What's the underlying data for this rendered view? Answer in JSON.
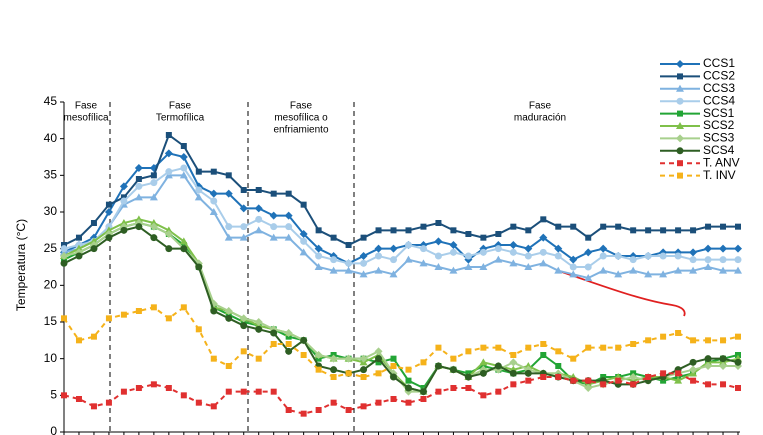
{
  "chart_data": {
    "type": "line",
    "y_label": "Temperatura (°C)",
    "ylim": [
      0,
      45
    ],
    "yticks": [
      0,
      5,
      10,
      15,
      20,
      25,
      30,
      35,
      40,
      45
    ],
    "legend": "top-right",
    "phases": [
      [
        "Fase",
        "mesofílica"
      ],
      [
        "Fase",
        "Termofílica"
      ],
      [
        "Fase",
        "mesofílica o",
        "enfriamiento"
      ],
      [
        "Fase",
        "maduración"
      ]
    ],
    "categories": [
      null,
      null,
      null,
      null,
      null,
      null,
      null,
      null,
      null,
      null,
      null,
      null,
      null,
      null,
      null,
      null,
      null,
      null,
      null,
      null,
      null,
      null,
      null,
      null,
      null,
      null,
      null,
      null,
      null,
      null,
      null,
      null,
      null,
      null,
      null,
      null,
      null,
      null,
      null,
      null,
      null,
      null,
      null,
      null,
      null,
      null
    ],
    "series": [
      {
        "name": "CCS1",
        "color": "#1f72b8",
        "marker": "diamond",
        "dash": false,
        "values": [
          24.5,
          25.5,
          26.5,
          30,
          33.5,
          36,
          36,
          38,
          37.5,
          33.5,
          32.5,
          32.5,
          30.5,
          30.5,
          29.5,
          29.5,
          27,
          25,
          24,
          23,
          24,
          25,
          25,
          25.5,
          25.5,
          26,
          25.5,
          23.5,
          25,
          25.5,
          25.5,
          25,
          26.5,
          25,
          23.5,
          24.5,
          25,
          24,
          24,
          24,
          24.5,
          24.5,
          24.5,
          25,
          25,
          25
        ]
      },
      {
        "name": "CCS2",
        "color": "#1b4f7a",
        "marker": "square",
        "dash": false,
        "values": [
          25.5,
          26.5,
          28.5,
          31,
          32,
          34.5,
          35,
          40.5,
          39,
          35.5,
          35.5,
          35,
          33,
          33,
          32.5,
          32.5,
          31,
          27.5,
          26.5,
          25.5,
          26.5,
          27.5,
          27.5,
          27.5,
          28,
          28.5,
          27.5,
          27,
          26.5,
          27,
          28,
          27.5,
          29,
          28,
          28,
          26.5,
          28,
          28,
          27.5,
          27.5,
          27.5,
          27.5,
          27.5,
          28,
          28,
          28
        ]
      },
      {
        "name": "CCS3",
        "color": "#7fb2e0",
        "marker": "triangle",
        "dash": false,
        "values": [
          24.5,
          25,
          26,
          28,
          31,
          32,
          32,
          35,
          35,
          32,
          30,
          26.5,
          26.5,
          27.5,
          26.5,
          26.5,
          24.5,
          22.5,
          22,
          22,
          21.5,
          22,
          21.5,
          23.5,
          23,
          22.5,
          22,
          22.5,
          22.5,
          23.5,
          23,
          22.5,
          23,
          22,
          21.5,
          21,
          22,
          21.5,
          22,
          21.5,
          21.5,
          22,
          22,
          22.5,
          22,
          22
        ]
      },
      {
        "name": "CCS4",
        "color": "#a9cdea",
        "marker": "circle",
        "dash": false,
        "values": [
          25,
          25.5,
          26,
          28,
          31.5,
          33.5,
          34,
          35.5,
          36,
          33,
          31.5,
          28,
          28,
          29,
          28,
          28,
          26,
          24,
          23.5,
          23,
          23,
          24,
          23.5,
          25.5,
          25,
          24,
          24.5,
          24,
          24.5,
          25,
          24.5,
          24,
          24.5,
          24,
          22.5,
          22.5,
          24,
          24,
          23.5,
          24,
          24,
          24,
          23.5,
          23.5,
          23.5,
          23.5
        ]
      },
      {
        "name": "SCS1",
        "color": "#22a535",
        "marker": "square",
        "dash": false,
        "values": [
          23.5,
          24.5,
          25.5,
          27,
          28,
          28.5,
          28,
          27,
          25.5,
          22.5,
          17,
          16,
          15,
          14.5,
          14,
          13,
          12.5,
          10,
          10.5,
          10,
          10,
          9.5,
          10,
          7,
          6,
          9,
          8.5,
          8,
          9,
          8.5,
          8,
          8.5,
          10.5,
          9,
          7,
          6.5,
          7.5,
          7.5,
          8,
          7.5,
          7,
          7.5,
          8,
          9.5,
          10,
          10.5
        ]
      },
      {
        "name": "SCS2",
        "color": "#7fc04a",
        "marker": "triangle",
        "dash": false,
        "values": [
          24,
          25,
          26,
          27.5,
          28.5,
          29,
          28.5,
          27.5,
          26,
          23,
          17,
          16.5,
          15.5,
          14.5,
          14,
          13.5,
          12.5,
          10.5,
          10,
          10,
          9.5,
          10.5,
          8,
          6,
          5.5,
          9,
          8.5,
          7.5,
          9.5,
          9,
          8.5,
          9,
          8,
          8,
          7.5,
          6.5,
          7,
          7.5,
          7,
          7.5,
          7.5,
          7,
          8,
          9.5,
          9.5,
          10
        ]
      },
      {
        "name": "SCS3",
        "color": "#a8d08d",
        "marker": "diamond",
        "dash": false,
        "values": [
          24,
          24.5,
          25.5,
          27,
          28,
          28.5,
          28,
          27,
          25,
          23,
          17.5,
          16.5,
          15.5,
          15,
          14,
          13.5,
          12.5,
          10.5,
          10,
          10,
          10,
          11,
          8,
          5.5,
          5.5,
          9,
          8.5,
          7.5,
          8.5,
          8.5,
          9.5,
          8.5,
          8,
          8,
          7,
          6,
          6.5,
          7,
          7.5,
          7,
          7.5,
          8,
          8.5,
          9,
          9,
          9
        ]
      },
      {
        "name": "SCS4",
        "color": "#2e5e23",
        "marker": "circle",
        "dash": false,
        "values": [
          23,
          24,
          25,
          26.5,
          27.5,
          28,
          26.5,
          25,
          25,
          22.5,
          16.5,
          15.5,
          14.5,
          14,
          13.5,
          11,
          12.5,
          9,
          8.5,
          8,
          8.5,
          10,
          7.5,
          6,
          5.5,
          9,
          8.5,
          7.5,
          8,
          9,
          8,
          8,
          8,
          7.5,
          7,
          7,
          7,
          6.5,
          6.5,
          7,
          7.5,
          8.5,
          9.5,
          10,
          10,
          9.5
        ]
      },
      {
        "name": "T. ANV",
        "color": "#e03030",
        "marker": "square",
        "dash": true,
        "values": [
          5,
          4.5,
          3.5,
          4,
          5.5,
          6,
          6.5,
          6,
          5,
          4,
          3.5,
          5.5,
          5.5,
          5.5,
          5.5,
          3,
          2.5,
          3,
          4,
          3,
          3.5,
          4,
          4.5,
          4,
          4.5,
          5.5,
          6,
          6,
          5,
          5.5,
          6.5,
          7,
          7.5,
          7.5,
          7,
          7,
          6.5,
          7,
          6.5,
          7.5,
          8,
          8,
          7,
          6.5,
          6.5,
          6
        ]
      },
      {
        "name": "T. INV",
        "color": "#f5b21a",
        "marker": "square",
        "dash": true,
        "values": [
          15.5,
          12.5,
          13,
          15.5,
          16,
          16.5,
          17,
          15.5,
          17,
          14,
          10,
          9,
          11,
          10,
          12,
          12,
          10.5,
          8.5,
          7.5,
          8,
          7.5,
          8,
          9,
          8.5,
          9.5,
          11.5,
          10,
          11,
          11.5,
          11.5,
          10.5,
          11.5,
          12,
          11,
          10,
          11.5,
          11.5,
          11.5,
          12,
          12.5,
          13,
          13.5,
          12.5,
          12.5,
          12.5,
          13
        ]
      }
    ]
  }
}
